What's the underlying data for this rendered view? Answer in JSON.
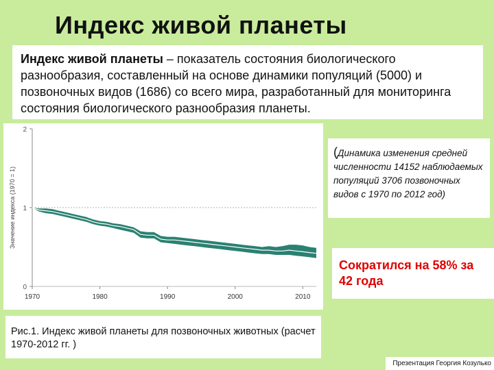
{
  "slide": {
    "title": "Индекс живой планеты",
    "description_term": "Индекс живой планеты",
    "description_rest": " – показатель состояния биологического разнообразия, составленный на основе динамики популяций (5000) и позвоночных видов (1686) со всего мира, разработанный для мониторинга состояния биологического разнообразия планеты.",
    "note_paren": "(",
    "note_text": "Динамика изменения средней численности 14152 наблюдаемых популяций 3706 позвоночных видов с 1970 по 2012 год)",
    "highlight": "Сократился на 58% за 42 года",
    "caption": "Рис.1.  Индекс живой планеты для позвоночных животных (расчет 1970-2012 гг. )",
    "credit": "Презентация Георгия Козулько"
  },
  "colors": {
    "background": "#c8ec9c",
    "line": "#1f7a6a",
    "band": "#1f7a6a",
    "highlight_text": "#e00000"
  },
  "chart_data": {
    "type": "line",
    "title": "",
    "xlabel": "",
    "ylabel": "Значение индекса (1970 = 1)",
    "xlim": [
      1970,
      2012
    ],
    "ylim": [
      0,
      2
    ],
    "x_ticks": [
      "1970",
      "1980",
      "1990",
      "2000",
      "2010"
    ],
    "y_ticks": [
      "0",
      "1",
      "2"
    ],
    "grid": false,
    "reference_line": 1,
    "series": [
      {
        "name": "",
        "x": [
          1970,
          1971,
          1972,
          1973,
          1974,
          1975,
          1976,
          1977,
          1978,
          1979,
          1980,
          1981,
          1982,
          1983,
          1984,
          1985,
          1986,
          1987,
          1988,
          1989,
          1990,
          1991,
          1992,
          1993,
          1994,
          1995,
          1996,
          1997,
          1998,
          1999,
          2000,
          2001,
          2002,
          2003,
          2004,
          2005,
          2006,
          2007,
          2008,
          2009,
          2010,
          2011,
          2012
        ],
        "y": [
          1.0,
          0.97,
          0.96,
          0.95,
          0.93,
          0.91,
          0.89,
          0.87,
          0.85,
          0.82,
          0.8,
          0.79,
          0.77,
          0.76,
          0.74,
          0.72,
          0.66,
          0.65,
          0.65,
          0.6,
          0.59,
          0.59,
          0.58,
          0.57,
          0.56,
          0.55,
          0.54,
          0.53,
          0.52,
          0.51,
          0.5,
          0.49,
          0.48,
          0.47,
          0.46,
          0.46,
          0.45,
          0.45,
          0.46,
          0.45,
          0.44,
          0.43,
          0.42
        ],
        "lower": [
          1.0,
          0.95,
          0.93,
          0.92,
          0.9,
          0.88,
          0.86,
          0.84,
          0.82,
          0.79,
          0.77,
          0.76,
          0.74,
          0.72,
          0.7,
          0.68,
          0.62,
          0.61,
          0.61,
          0.56,
          0.55,
          0.54,
          0.53,
          0.52,
          0.51,
          0.5,
          0.49,
          0.48,
          0.47,
          0.46,
          0.45,
          0.44,
          0.43,
          0.42,
          0.41,
          0.41,
          0.4,
          0.4,
          0.4,
          0.39,
          0.38,
          0.37,
          0.36
        ],
        "upper": [
          1.0,
          0.99,
          0.99,
          0.98,
          0.96,
          0.94,
          0.92,
          0.9,
          0.88,
          0.85,
          0.83,
          0.82,
          0.8,
          0.79,
          0.77,
          0.75,
          0.7,
          0.69,
          0.69,
          0.64,
          0.63,
          0.63,
          0.62,
          0.61,
          0.6,
          0.59,
          0.58,
          0.57,
          0.56,
          0.55,
          0.54,
          0.53,
          0.52,
          0.51,
          0.5,
          0.51,
          0.5,
          0.51,
          0.53,
          0.53,
          0.52,
          0.5,
          0.49
        ]
      }
    ]
  }
}
